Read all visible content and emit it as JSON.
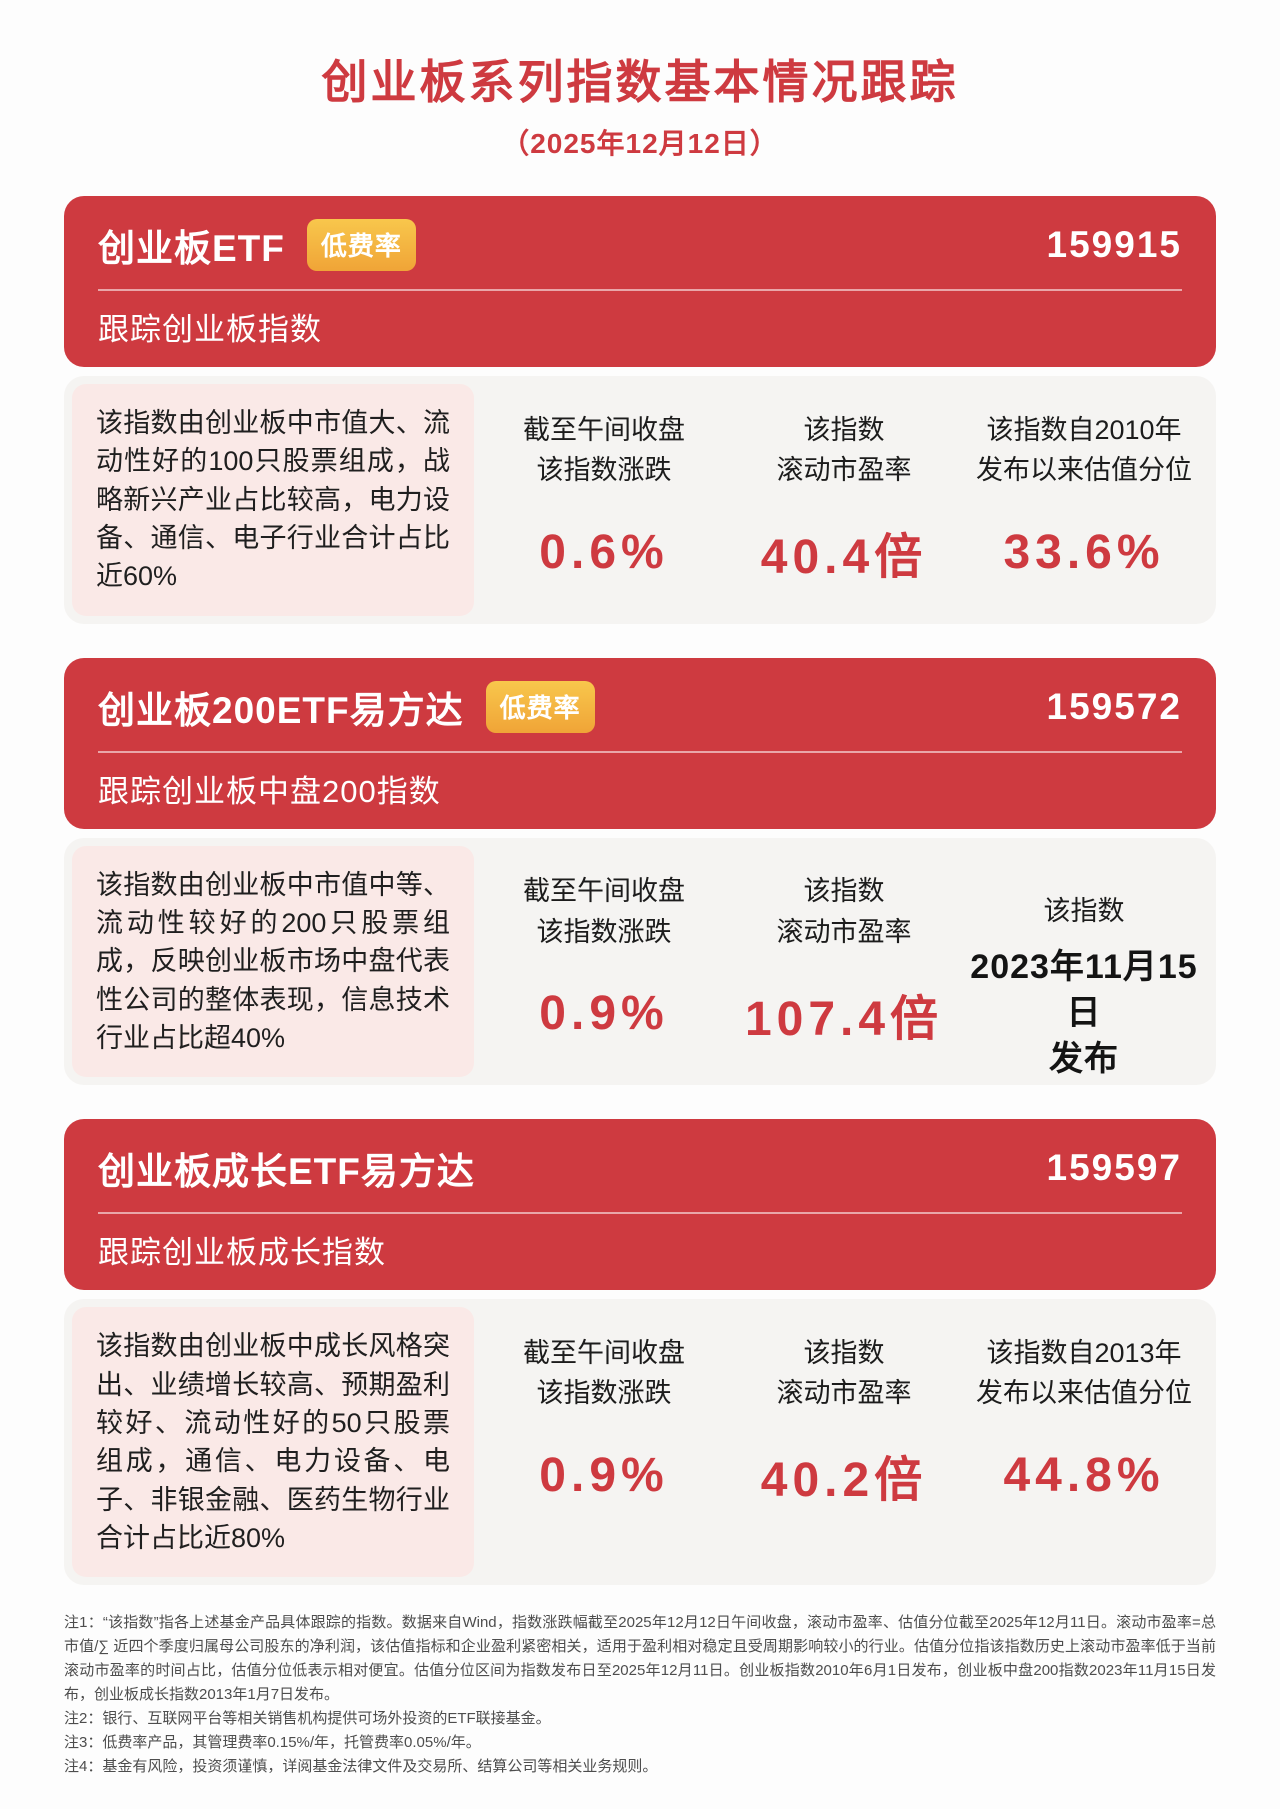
{
  "colors": {
    "red": "#ce3a40",
    "badge-gold": "#f0a437",
    "badge-gold-light": "#f8c74c",
    "pink": "#fae9e7",
    "body-gray": "#f5f4f2",
    "ink": "#1f1f1f",
    "footnote": "#4d4d4d"
  },
  "header": {
    "title": "创业板系列指数基本情况跟踪",
    "date": "（2025年12月12日）"
  },
  "cards": [
    {
      "name": "创业板ETF",
      "badge": "低费率",
      "code": "159915",
      "subtitle": "跟踪创业板指数",
      "description": "该指数由创业板中市值大、流动性好的100只股票组成，战略新兴产业占比较高，电力设备、通信、电子行业合计占比近60%",
      "stats": [
        {
          "label": [
            "截至午间收盘",
            "该指数涨跌"
          ],
          "value": [
            "0.6%"
          ],
          "value_color": "red"
        },
        {
          "label": [
            "该指数",
            "滚动市盈率"
          ],
          "value": [
            "40.4倍"
          ],
          "value_color": "red"
        },
        {
          "label": [
            "该指数自2010年",
            "发布以来估值分位"
          ],
          "value": [
            "33.6%"
          ],
          "value_color": "red"
        }
      ]
    },
    {
      "name": "创业板200ETF易方达",
      "badge": "低费率",
      "code": "159572",
      "subtitle": "跟踪创业板中盘200指数",
      "description": "该指数由创业板中市值中等、流动性较好的200只股票组成，反映创业板市场中盘代表性公司的整体表现，信息技术行业占比超40%",
      "stats": [
        {
          "label": [
            "截至午间收盘",
            "该指数涨跌"
          ],
          "value": [
            "0.9%"
          ],
          "value_color": "red"
        },
        {
          "label": [
            "该指数",
            "滚动市盈率"
          ],
          "value": [
            "107.4倍"
          ],
          "value_color": "red"
        },
        {
          "label": [
            "该指数"
          ],
          "value": [
            "2023年11月15日",
            "发布"
          ],
          "value_color": "dark"
        }
      ]
    },
    {
      "name": "创业板成长ETF易方达",
      "code": "159597",
      "subtitle": "跟踪创业板成长指数",
      "description": "该指数由创业板中成长风格突出、业绩增长较高、预期盈利较好、流动性好的50只股票组成，通信、电力设备、电子、非银金融、医药生物行业合计占比近80%",
      "stats": [
        {
          "label": [
            "截至午间收盘",
            "该指数涨跌"
          ],
          "value": [
            "0.9%"
          ],
          "value_color": "red"
        },
        {
          "label": [
            "该指数",
            "滚动市盈率"
          ],
          "value": [
            "40.2倍"
          ],
          "value_color": "red"
        },
        {
          "label": [
            "该指数自2013年",
            "发布以来估值分位"
          ],
          "value": [
            "44.8%"
          ],
          "value_color": "red"
        }
      ]
    }
  ],
  "footnotes": [
    "注1：“该指数”指各上述基金产品具体跟踪的指数。数据来自Wind，指数涨跌幅截至2025年12月12日午间收盘，滚动市盈率、估值分位截至2025年12月11日。滚动市盈率=总市值/∑ 近四个季度归属母公司股东的净利润，该估值指标和企业盈利紧密相关，适用于盈利相对稳定且受周期影响较小的行业。估值分位指该指数历史上滚动市盈率低于当前滚动市盈率的时间占比，估值分位低表示相对便宜。估值分位区间为指数发布日至2025年12月11日。创业板指数2010年6月1日发布，创业板中盘200指数2023年11月15日发布，创业板成长指数2013年1月7日发布。",
    "注2：银行、互联网平台等相关销售机构提供可场外投资的ETF联接基金。",
    "注3：低费率产品，其管理费率0.15%/年，托管费率0.05%/年。",
    "注4：基金有风险，投资须谨慎，详阅基金法律文件及交易所、结算公司等相关业务规则。"
  ]
}
